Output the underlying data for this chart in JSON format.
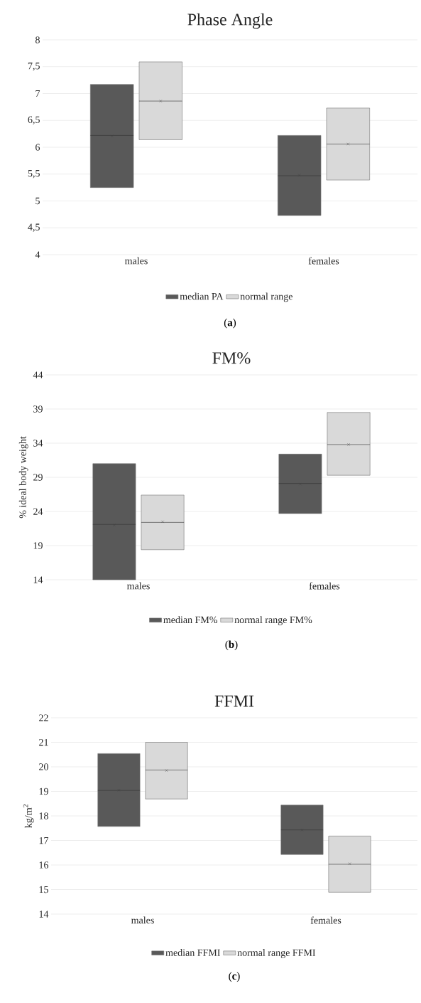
{
  "chart_data": [
    {
      "type": "box",
      "title": "Phase Angle",
      "categories": [
        "males",
        "females"
      ],
      "ylim": [
        4,
        8
      ],
      "yticks": [
        4,
        {
          "value": 4.5,
          "label": "4,5"
        },
        5,
        {
          "value": 5.5,
          "label": "5,5"
        },
        6,
        {
          "value": 6.5,
          "label": "6,5"
        },
        7,
        {
          "value": 7.5,
          "label": "7,5"
        },
        8
      ],
      "grid": "y",
      "legend": "bottom",
      "annotations": [
        "(**a**)"
      ],
      "series": [
        {
          "name": "median PA",
          "color": "#595959",
          "boxes": [
            {
              "low": 5.25,
              "q1": 5.25,
              "median": 6.22,
              "q3": 7.17,
              "high": 7.17,
              "mean": 6.21
            },
            {
              "low": 4.73,
              "q1": 4.73,
              "median": 5.47,
              "q3": 6.22,
              "high": 6.22,
              "mean": 5.48
            }
          ]
        },
        {
          "name": "normal range",
          "color": "#d9d9d9",
          "boxes": [
            {
              "low": 6.14,
              "q1": 6.14,
              "median": 6.86,
              "q3": 7.59,
              "high": 7.59,
              "mean": 6.86
            },
            {
              "low": 5.39,
              "q1": 5.39,
              "median": 6.06,
              "q3": 6.73,
              "high": 6.73,
              "mean": 6.06
            }
          ]
        }
      ]
    },
    {
      "type": "box",
      "title": "FM%",
      "ylabel": "% ideal body weight",
      "categories": [
        "males",
        "females"
      ],
      "ylim": [
        14,
        44
      ],
      "yticks": [
        14,
        19,
        24,
        29,
        34,
        39,
        44
      ],
      "grid": "y",
      "legend": "bottom",
      "annotations": [
        "(**b**)"
      ],
      "series": [
        {
          "name": "median FM%",
          "color": "#595959",
          "boxes": [
            {
              "low": 14,
              "q1": 14,
              "median": 22.1,
              "q3": 31.0,
              "high": 31.0,
              "mean": 22.0
            },
            {
              "low": 23.7,
              "q1": 23.7,
              "median": 28.1,
              "q3": 32.4,
              "high": 32.4,
              "mean": 28.0
            }
          ]
        },
        {
          "name": "normal range FM%",
          "color": "#d9d9d9",
          "boxes": [
            {
              "low": 18.4,
              "q1": 18.4,
              "median": 22.4,
              "q3": 26.4,
              "high": 26.4,
              "mean": 22.5
            },
            {
              "low": 29.3,
              "q1": 29.3,
              "median": 33.8,
              "q3": 38.5,
              "high": 38.5,
              "mean": 33.8
            }
          ]
        }
      ]
    },
    {
      "type": "box",
      "title": "FFMI",
      "ylabel": "kg/m$^{2}$",
      "categories": [
        "males",
        "females"
      ],
      "ylim": [
        14,
        22
      ],
      "yticks": [
        14,
        15,
        16,
        17,
        18,
        19,
        20,
        21,
        22
      ],
      "grid": "y",
      "legend": "bottom",
      "annotations": [
        "(**c**)"
      ],
      "series": [
        {
          "name": "median FFMI",
          "color": "#595959",
          "boxes": [
            {
              "low": 17.57,
              "q1": 17.57,
              "median": 19.04,
              "q3": 20.54,
              "high": 20.54,
              "mean": 19.05
            },
            {
              "low": 16.43,
              "q1": 16.43,
              "median": 17.43,
              "q3": 18.44,
              "high": 18.44,
              "mean": 17.43
            }
          ]
        },
        {
          "name": "normal range FFMI",
          "color": "#d9d9d9",
          "boxes": [
            {
              "low": 18.69,
              "q1": 18.69,
              "median": 19.87,
              "q3": 21.0,
              "high": 21.0,
              "mean": 19.85
            },
            {
              "low": 14.89,
              "q1": 14.89,
              "median": 16.03,
              "q3": 17.18,
              "high": 17.18,
              "mean": 16.05
            }
          ]
        }
      ]
    }
  ]
}
